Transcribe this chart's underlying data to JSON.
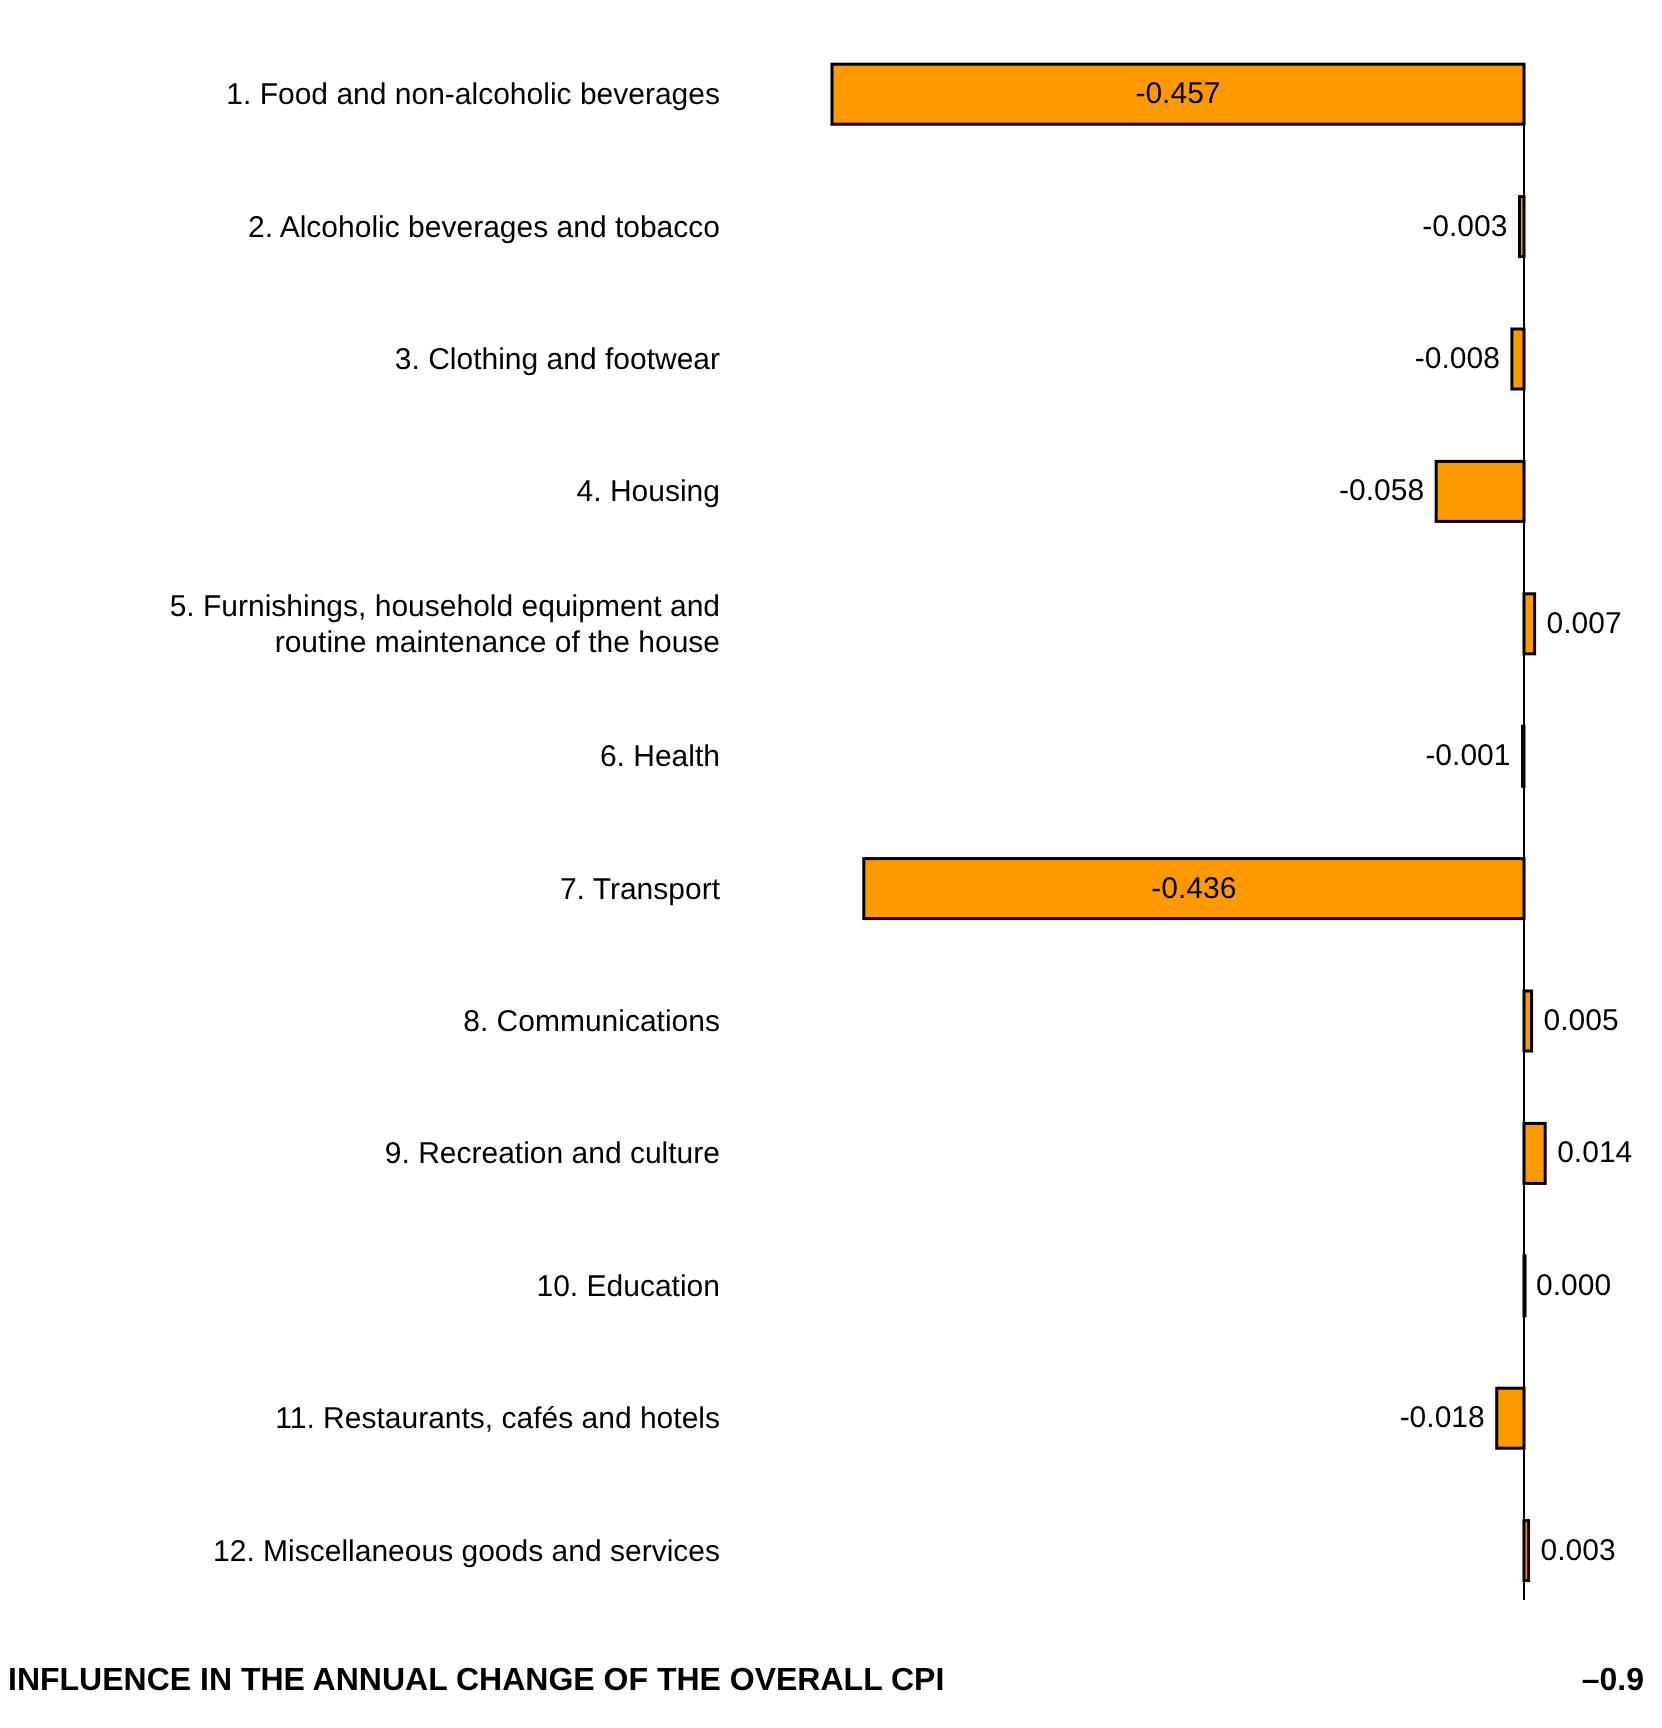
{
  "chart_data": {
    "type": "bar",
    "orientation": "horizontal",
    "categories": [
      "1. Food and non-alcoholic beverages",
      "2. Alcoholic beverages and tobacco",
      "3. Clothing and footwear",
      "4. Housing",
      "5. Furnishings, household equipment and\nroutine maintenance of the house",
      "6. Health",
      "7. Transport",
      "8. Communications",
      "9. Recreation and culture",
      "10. Education",
      "11. Restaurants, cafés and hotels",
      "12. Miscellaneous goods and services"
    ],
    "values": [
      -0.457,
      -0.003,
      -0.008,
      -0.058,
      0.007,
      -0.001,
      -0.436,
      0.005,
      0.014,
      0.0,
      -0.018,
      0.003
    ],
    "color": "#ff9900",
    "value_labels": [
      "-0.457",
      "-0.003",
      "-0.008",
      "-0.058",
      "0.007",
      "-0.001",
      "-0.436",
      "0.005",
      "0.014",
      "0.000",
      "-0.018",
      "0.003"
    ],
    "annotations": [
      "INFLUENCE IN THE ANNUAL CHANGE OF THE OVERALL CPI",
      "–0.9"
    ]
  }
}
